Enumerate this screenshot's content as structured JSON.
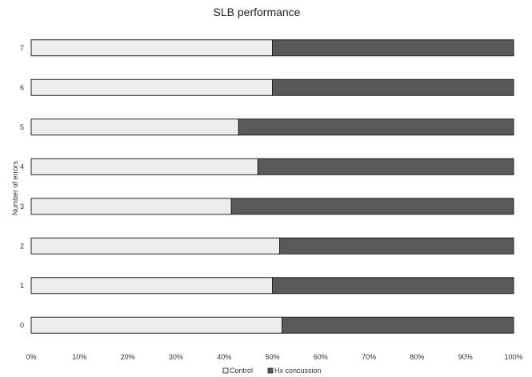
{
  "chart_data": {
    "type": "bar",
    "orientation": "horizontal",
    "stacked": "percent",
    "title": "SLB performance",
    "xlabel": "",
    "ylabel": "Number of errors",
    "categories": [
      "0",
      "1",
      "2",
      "3",
      "4",
      "5",
      "6",
      "7"
    ],
    "series": [
      {
        "name": "Control",
        "values": [
          52,
          50,
          51.5,
          41.5,
          47,
          43,
          50,
          50
        ]
      },
      {
        "name": "Hx concussion",
        "values": [
          48,
          50,
          48.5,
          58.5,
          53,
          57,
          50,
          50
        ]
      }
    ],
    "xlim": [
      0,
      100
    ],
    "xticks": [
      "0%",
      "10%",
      "20%",
      "30%",
      "40%",
      "50%",
      "60%",
      "70%",
      "80%",
      "90%",
      "100%"
    ],
    "grid": false,
    "legend_position": "bottom",
    "colors": {
      "Control": "#ededed",
      "Hx concussion": "#595959",
      "outline": "#222222"
    }
  }
}
